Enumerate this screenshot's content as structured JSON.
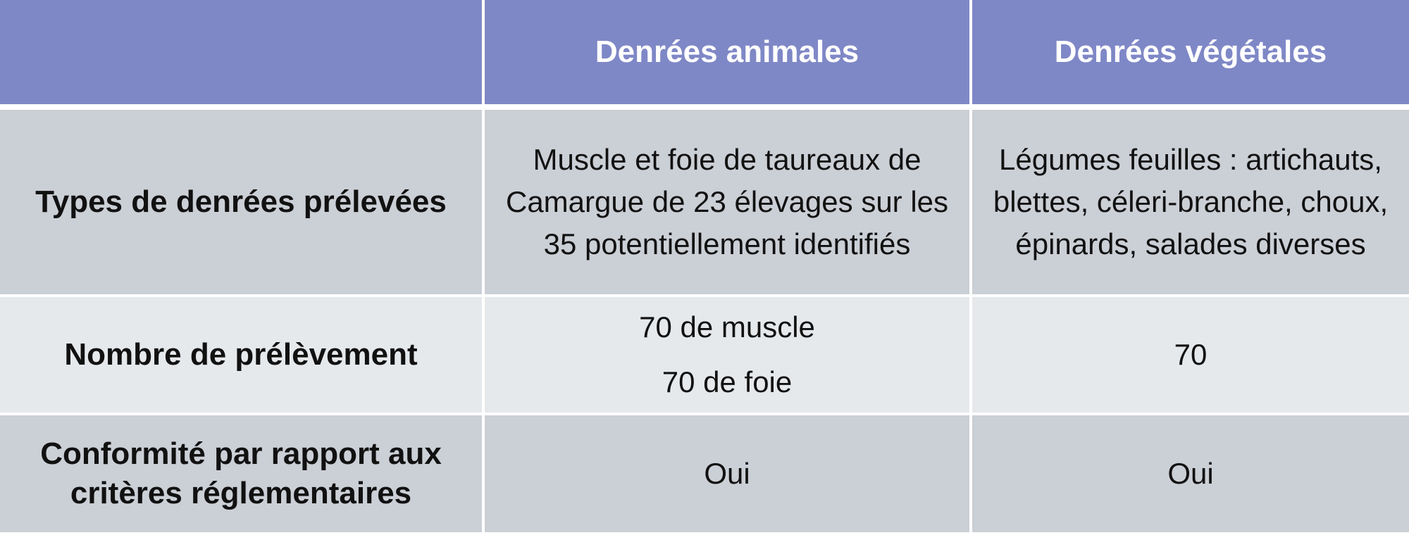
{
  "table": {
    "headers": [
      "",
      "Denrées animales",
      "Denrées végétales"
    ],
    "rows": [
      {
        "label": "Types de denrées prélevées",
        "animales": "Muscle et foie de taureaux de Camargue de 23 élevages sur les 35 potentiellement identifiés",
        "vegetales": "Légumes feuilles : artichauts, blettes, céleri-branche, choux, épinards, salades diverses"
      },
      {
        "label": "Nombre de prélèvement",
        "animales_lines": [
          "70 de muscle",
          "70 de foie"
        ],
        "vegetales": "70"
      },
      {
        "label": "Conformité par rapport aux critères réglementaires",
        "animales": "Oui",
        "vegetales": "Oui"
      }
    ]
  },
  "colors": {
    "header_bg": "#7f88c6",
    "row_dark_bg": "#cbcfd6",
    "row_light_bg": "#e6e9ec",
    "header_text": "#ffffff",
    "body_text": "#111111"
  }
}
